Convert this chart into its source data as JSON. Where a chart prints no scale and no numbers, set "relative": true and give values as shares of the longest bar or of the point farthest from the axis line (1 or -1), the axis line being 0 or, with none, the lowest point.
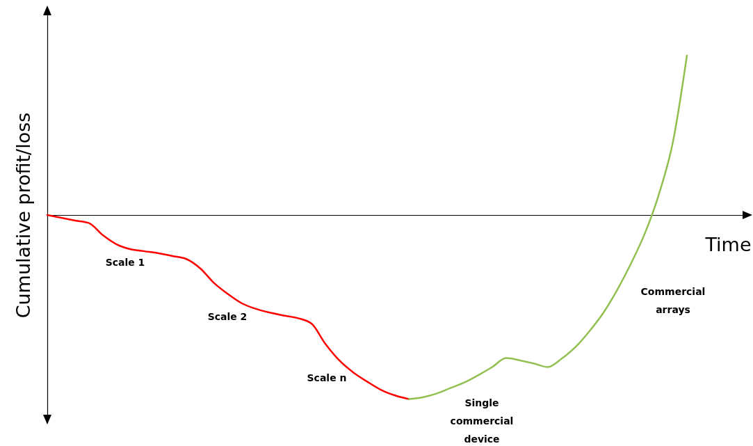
{
  "chart_data": {
    "type": "line",
    "relative": true,
    "xlabel": "Time",
    "ylabel": "Cumulative profit/loss",
    "tick_labels": false,
    "marker": "none",
    "line_style": "solid",
    "categories": [
      null,
      null,
      null,
      null,
      null,
      null,
      null,
      null,
      null,
      null,
      null,
      null,
      null,
      null,
      null,
      null,
      null,
      null,
      null,
      null,
      null,
      null,
      null,
      null,
      null,
      null,
      null,
      null,
      null,
      null,
      null,
      null,
      null,
      null,
      null,
      null,
      null,
      null,
      null,
      null,
      null,
      null,
      null,
      null,
      null,
      null,
      null,
      null,
      null,
      null,
      null
    ],
    "series": [
      {
        "color": "#ff0000",
        "values": [
          0,
          -0.015,
          -0.03,
          -0.044,
          -0.11,
          -0.16,
          -0.186,
          -0.197,
          -0.208,
          -0.223,
          -0.239,
          -0.29,
          -0.37,
          -0.43,
          -0.48,
          -0.51,
          -0.53,
          -0.546,
          -0.56,
          -0.59,
          -0.7,
          -0.79,
          -0.855,
          -0.905,
          -0.95,
          -0.98,
          -1,
          null,
          null,
          null,
          null,
          null,
          null,
          null,
          null,
          null,
          null,
          null,
          null,
          null,
          null,
          null,
          null,
          null,
          null,
          null,
          null,
          null,
          null,
          null,
          null
        ]
      },
      {
        "color": "#92c050",
        "values": [
          null,
          null,
          null,
          null,
          null,
          null,
          null,
          null,
          null,
          null,
          null,
          null,
          null,
          null,
          null,
          null,
          null,
          null,
          null,
          null,
          null,
          null,
          null,
          null,
          null,
          null,
          -1,
          -0.99,
          -0.97,
          -0.94,
          -0.91,
          -0.87,
          -0.826,
          -0.777,
          -0.79,
          -0.807,
          -0.826,
          -0.78,
          -0.716,
          -0.63,
          -0.53,
          -0.405,
          -0.26,
          -0.095,
          0.117,
          0.4,
          0.867,
          null,
          null,
          null,
          null
        ]
      }
    ],
    "annotations": [
      "Scale 1",
      "Scale 2",
      "Scale n",
      "Single commercial device",
      "Commercial arrays"
    ]
  }
}
